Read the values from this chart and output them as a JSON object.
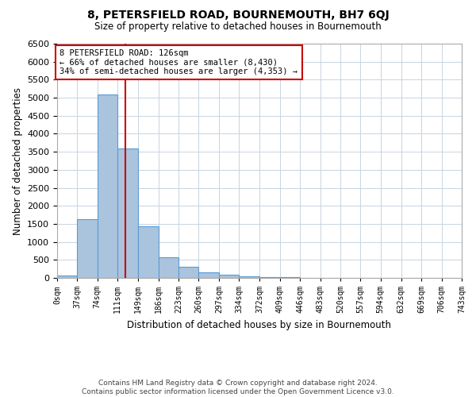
{
  "title": "8, PETERSFIELD ROAD, BOURNEMOUTH, BH7 6QJ",
  "subtitle": "Size of property relative to detached houses in Bournemouth",
  "xlabel": "Distribution of detached houses by size in Bournemouth",
  "ylabel": "Number of detached properties",
  "bin_edges": [
    0,
    37,
    74,
    111,
    149,
    186,
    223,
    260,
    297,
    334,
    372,
    409,
    446,
    483,
    520,
    557,
    594,
    632,
    669,
    706,
    743
  ],
  "bar_heights": [
    60,
    1620,
    5080,
    3600,
    1430,
    580,
    300,
    150,
    80,
    50,
    30,
    20,
    0,
    0,
    0,
    0,
    0,
    0,
    0,
    0
  ],
  "bar_color": "#aac4de",
  "bar_edge_color": "#5b9bd5",
  "property_size": 126,
  "vline_color": "#cc0000",
  "annotation_title": "8 PETERSFIELD ROAD: 126sqm",
  "annotation_line1": "← 66% of detached houses are smaller (8,430)",
  "annotation_line2": "34% of semi-detached houses are larger (4,353) →",
  "annotation_box_color": "#ffffff",
  "annotation_box_edge": "#cc0000",
  "ylim": [
    0,
    6500
  ],
  "yticks": [
    0,
    500,
    1000,
    1500,
    2000,
    2500,
    3000,
    3500,
    4000,
    4500,
    5000,
    5500,
    6000,
    6500
  ],
  "footer_line1": "Contains HM Land Registry data © Crown copyright and database right 2024.",
  "footer_line2": "Contains public sector information licensed under the Open Government Licence v3.0.",
  "background_color": "#ffffff",
  "grid_color": "#c8d4e0"
}
